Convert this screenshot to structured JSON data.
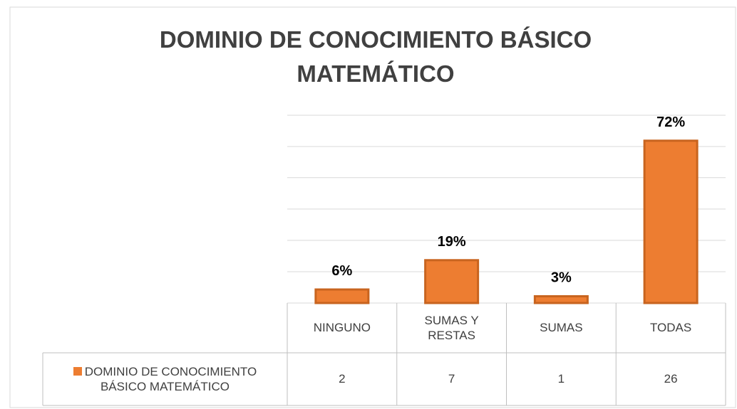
{
  "chart_data": {
    "type": "bar",
    "title": "DOMINIO DE CONOCIMIENTO BÁSICO MATEMÁTICO",
    "categories": [
      "NINGUNO",
      "SUMAS Y RESTAS",
      "SUMAS",
      "TODAS"
    ],
    "series": [
      {
        "name": "DOMINIO DE CONOCIMIENTO BÁSICO MATEMÁTICO",
        "color": "#ed7d31",
        "values": [
          6,
          19,
          3,
          72
        ],
        "value_labels": [
          "6%",
          "19%",
          "3%",
          "72%"
        ],
        "table_values": [
          2,
          7,
          1,
          26
        ]
      }
    ],
    "ylim": [
      0,
      83.3
    ],
    "yticks": [
      0,
      13.9,
      27.8,
      41.7,
      55.6,
      69.4,
      83.3
    ],
    "grid": true
  }
}
